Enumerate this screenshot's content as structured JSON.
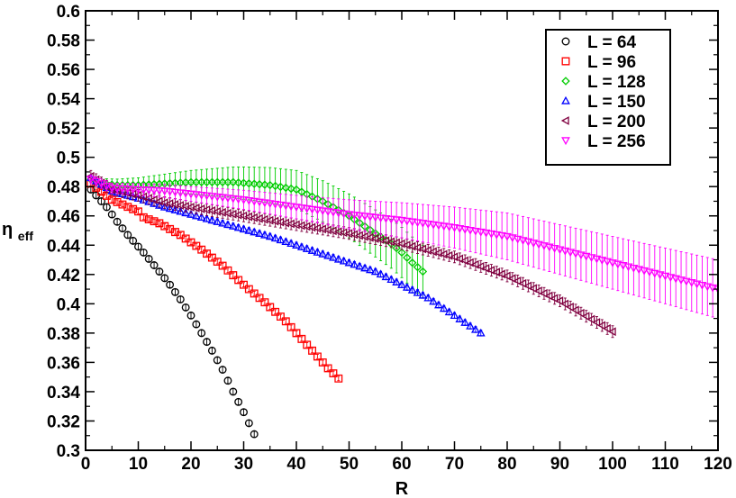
{
  "chart_data": {
    "type": "scatter",
    "title": "",
    "xlabel": "R",
    "ylabel_main": "η",
    "ylabel_sub": "eff",
    "xlim": [
      0,
      120
    ],
    "ylim": [
      0.3,
      0.6
    ],
    "xticks": [
      "0",
      "10",
      "20",
      "30",
      "40",
      "50",
      "60",
      "70",
      "80",
      "90",
      "100",
      "110",
      "120"
    ],
    "yticks": [
      "0.3",
      "0.32",
      "0.34",
      "0.36",
      "0.38",
      "0.4",
      "0.42",
      "0.44",
      "0.46",
      "0.48",
      "0.5",
      "0.52",
      "0.54",
      "0.56",
      "0.58",
      "0.6"
    ],
    "grid": false,
    "legend_position": "top-right",
    "series": [
      {
        "name": "L = 64",
        "marker": "circle",
        "color": "#000000",
        "x_start": 1,
        "x_end": 32,
        "x_step": 1,
        "y_knots": [
          [
            1,
            0.478
          ],
          [
            2,
            0.474
          ],
          [
            4,
            0.466
          ],
          [
            6,
            0.456
          ],
          [
            8,
            0.447
          ],
          [
            11,
            0.435
          ],
          [
            14,
            0.422
          ],
          [
            16,
            0.413
          ],
          [
            18,
            0.403
          ],
          [
            20,
            0.392
          ],
          [
            22,
            0.38
          ],
          [
            24,
            0.368
          ],
          [
            26,
            0.355
          ],
          [
            28,
            0.34
          ],
          [
            30,
            0.326
          ],
          [
            32,
            0.311
          ]
        ],
        "err": 0.002
      },
      {
        "name": "L = 96",
        "marker": "square",
        "color": "#ff0000",
        "x_start": 1,
        "x_end": 48,
        "x_step": 1,
        "y_knots": [
          [
            1,
            0.482
          ],
          [
            5,
            0.471
          ],
          [
            10,
            0.463
          ],
          [
            11,
            0.459
          ],
          [
            14,
            0.455
          ],
          [
            18,
            0.447
          ],
          [
            22,
            0.437
          ],
          [
            26,
            0.426
          ],
          [
            30,
            0.413
          ],
          [
            34,
            0.401
          ],
          [
            38,
            0.388
          ],
          [
            42,
            0.372
          ],
          [
            46,
            0.356
          ],
          [
            48,
            0.349
          ]
        ],
        "err": 0.0015
      },
      {
        "name": "L = 128",
        "marker": "diamond",
        "color": "#00cc00",
        "x_start": 1,
        "x_end": 64,
        "x_step": 1,
        "y_knots": [
          [
            1,
            0.485
          ],
          [
            3,
            0.482
          ],
          [
            6,
            0.481
          ],
          [
            10,
            0.481
          ],
          [
            15,
            0.482
          ],
          [
            20,
            0.483
          ],
          [
            28,
            0.483
          ],
          [
            35,
            0.481
          ],
          [
            40,
            0.478
          ],
          [
            45,
            0.47
          ],
          [
            50,
            0.46
          ],
          [
            55,
            0.448
          ],
          [
            58,
            0.441
          ],
          [
            60,
            0.435
          ],
          [
            62,
            0.428
          ],
          [
            64,
            0.422
          ]
        ],
        "err_knots": [
          [
            1,
            0.003
          ],
          [
            10,
            0.005
          ],
          [
            20,
            0.008
          ],
          [
            30,
            0.011
          ],
          [
            40,
            0.013
          ],
          [
            50,
            0.015
          ],
          [
            64,
            0.018
          ]
        ]
      },
      {
        "name": "L = 150",
        "marker": "triangle-up",
        "color": "#0000ff",
        "x_start": 1,
        "x_end": 75,
        "x_step": 1,
        "y_knots": [
          [
            1,
            0.486
          ],
          [
            5,
            0.477
          ],
          [
            10,
            0.472
          ],
          [
            15,
            0.466
          ],
          [
            20,
            0.461
          ],
          [
            25,
            0.456
          ],
          [
            30,
            0.451
          ],
          [
            35,
            0.446
          ],
          [
            40,
            0.44
          ],
          [
            45,
            0.434
          ],
          [
            50,
            0.428
          ],
          [
            55,
            0.422
          ],
          [
            60,
            0.413
          ],
          [
            65,
            0.404
          ],
          [
            70,
            0.392
          ],
          [
            75,
            0.38
          ]
        ],
        "err": 0.002
      },
      {
        "name": "L = 200",
        "marker": "triangle-left",
        "color": "#800040",
        "x_start": 1,
        "x_end": 100,
        "x_step": 1,
        "y_knots": [
          [
            1,
            0.487
          ],
          [
            5,
            0.478
          ],
          [
            10,
            0.474
          ],
          [
            15,
            0.469
          ],
          [
            20,
            0.466
          ],
          [
            30,
            0.46
          ],
          [
            40,
            0.454
          ],
          [
            50,
            0.448
          ],
          [
            60,
            0.441
          ],
          [
            70,
            0.432
          ],
          [
            80,
            0.419
          ],
          [
            90,
            0.402
          ],
          [
            100,
            0.381
          ]
        ],
        "err": 0.004
      },
      {
        "name": "L = 256",
        "marker": "triangle-down",
        "color": "#ff00ff",
        "x_start": 1,
        "x_end": 120,
        "x_step": 1,
        "y_knots": [
          [
            1,
            0.485
          ],
          [
            5,
            0.479
          ],
          [
            10,
            0.478
          ],
          [
            15,
            0.477
          ],
          [
            20,
            0.475
          ],
          [
            30,
            0.471
          ],
          [
            40,
            0.466
          ],
          [
            50,
            0.461
          ],
          [
            60,
            0.457
          ],
          [
            70,
            0.452
          ],
          [
            80,
            0.446
          ],
          [
            90,
            0.437
          ],
          [
            100,
            0.428
          ],
          [
            110,
            0.419
          ],
          [
            120,
            0.41
          ]
        ],
        "err_knots": [
          [
            1,
            0.003
          ],
          [
            10,
            0.004
          ],
          [
            20,
            0.005
          ],
          [
            40,
            0.008
          ],
          [
            60,
            0.012
          ],
          [
            80,
            0.016
          ],
          [
            100,
            0.018
          ],
          [
            120,
            0.02
          ]
        ]
      }
    ]
  }
}
